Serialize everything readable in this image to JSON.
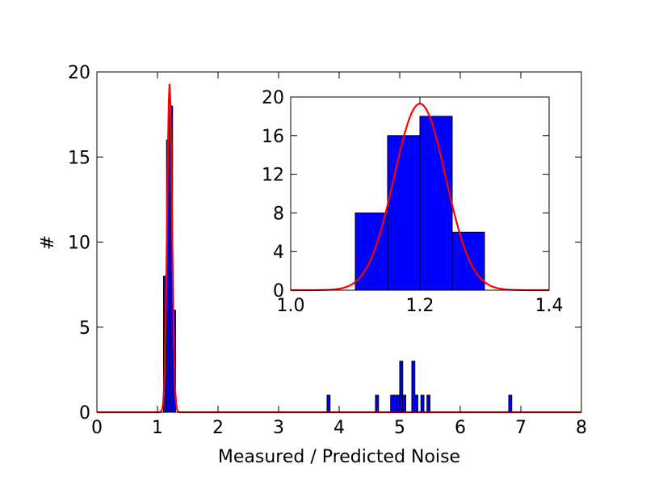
{
  "chart_data": [
    {
      "id": "main",
      "type": "bar",
      "xlabel": "Measured / Predicted Noise",
      "ylabel": "#",
      "xlim": [
        0,
        8
      ],
      "ylim": [
        0,
        20
      ],
      "xticks": [
        0,
        1,
        2,
        3,
        4,
        5,
        6,
        7,
        8
      ],
      "yticks": [
        0,
        5,
        10,
        15,
        20
      ],
      "bar_color": "#0000ff",
      "bars": [
        {
          "x0": 1.1,
          "x1": 1.15,
          "value": 8
        },
        {
          "x0": 1.15,
          "x1": 1.2,
          "value": 16
        },
        {
          "x0": 1.2,
          "x1": 1.25,
          "value": 18
        },
        {
          "x0": 1.25,
          "x1": 1.3,
          "value": 6
        },
        {
          "x0": 3.8,
          "x1": 3.85,
          "value": 1
        },
        {
          "x0": 4.6,
          "x1": 4.65,
          "value": 1
        },
        {
          "x0": 4.85,
          "x1": 4.9,
          "value": 1
        },
        {
          "x0": 4.9,
          "x1": 4.95,
          "value": 1
        },
        {
          "x0": 4.95,
          "x1": 5.0,
          "value": 1
        },
        {
          "x0": 5.0,
          "x1": 5.05,
          "value": 3
        },
        {
          "x0": 5.05,
          "x1": 5.1,
          "value": 1
        },
        {
          "x0": 5.2,
          "x1": 5.25,
          "value": 3
        },
        {
          "x0": 5.25,
          "x1": 5.3,
          "value": 1
        },
        {
          "x0": 5.35,
          "x1": 5.4,
          "value": 1
        },
        {
          "x0": 5.45,
          "x1": 5.5,
          "value": 1
        },
        {
          "x0": 6.8,
          "x1": 6.85,
          "value": 1
        }
      ],
      "fit_curve": {
        "type": "gaussian",
        "mean": 1.2,
        "sigma": 0.04,
        "amplitude": 19.3,
        "color": "#ff0000"
      }
    },
    {
      "id": "inset",
      "type": "bar",
      "xlim": [
        1.0,
        1.4
      ],
      "ylim": [
        0,
        20
      ],
      "xticks": [
        1.0,
        1.2,
        1.4
      ],
      "xtick_labels": [
        "1.0",
        "1.2",
        "1.4"
      ],
      "yticks": [
        0,
        4,
        8,
        12,
        16,
        20
      ],
      "bar_color": "#0000ff",
      "bars": [
        {
          "x0": 1.1,
          "x1": 1.15,
          "value": 8
        },
        {
          "x0": 1.15,
          "x1": 1.2,
          "value": 16
        },
        {
          "x0": 1.2,
          "x1": 1.25,
          "value": 18
        },
        {
          "x0": 1.25,
          "x1": 1.3,
          "value": 6
        }
      ],
      "fit_curve": {
        "type": "gaussian",
        "mean": 1.2,
        "sigma": 0.04,
        "amplitude": 19.3,
        "color": "#ff0000"
      }
    }
  ]
}
